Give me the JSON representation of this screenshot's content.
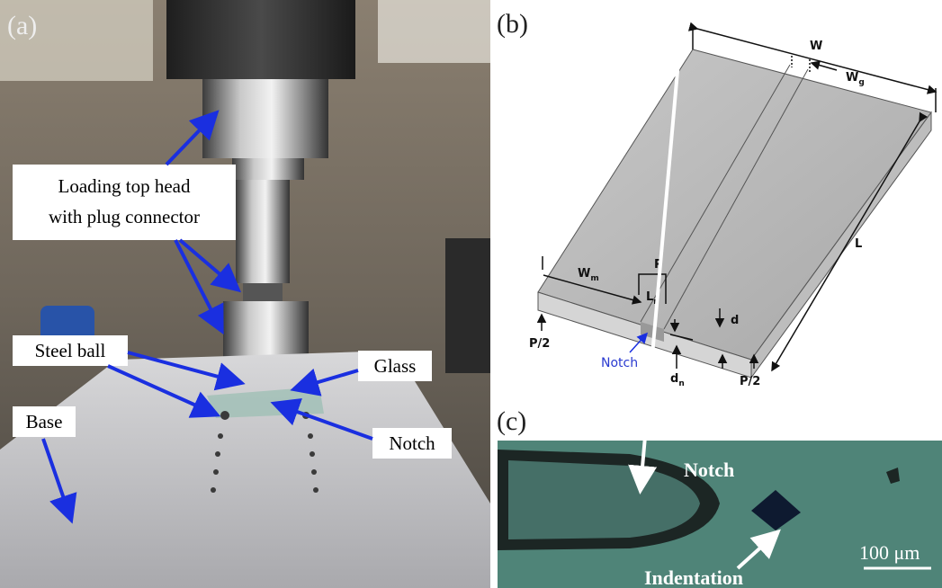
{
  "panel_a": {
    "label": "(a)",
    "labels": {
      "loading_head": [
        "Loading top head",
        "with plug connector"
      ],
      "steel_ball": "Steel ball",
      "base": "Base",
      "glass": "Glass",
      "notch": "Notch"
    }
  },
  "panel_b": {
    "label": "(b)",
    "dimensions": {
      "width": "W",
      "gap": {
        "main": "W",
        "sub": "g"
      },
      "length": "L",
      "margin": {
        "main": "W",
        "sub": "m"
      },
      "load": "P",
      "notch_length": {
        "main": "L",
        "sub": "n"
      },
      "thickness": "d",
      "support_left": "P/2",
      "support_right": "P/2",
      "notch_depth": {
        "main": "d",
        "sub": "n"
      }
    },
    "notch": "Notch"
  },
  "panel_c": {
    "label": "(c)",
    "notch": "Notch",
    "indentation": "Indentation",
    "scale_bar": "100 μm"
  }
}
